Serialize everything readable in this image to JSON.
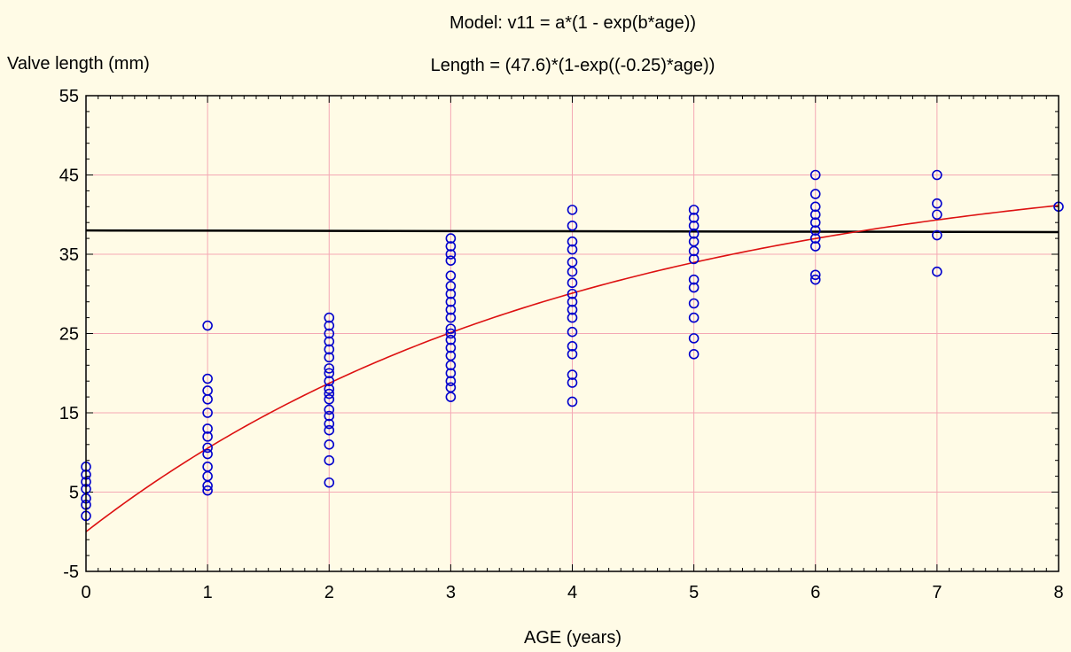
{
  "chart_data": {
    "type": "scatter",
    "title": "Model: v11 = a*(1 - exp(b*age))",
    "subtitle": "Length = (47.6)*(1-exp((-0.25)*age))",
    "xlabel": "AGE (years)",
    "ylabel": "Valve length (mm)",
    "xlim": [
      0,
      8
    ],
    "ylim": [
      -5,
      55
    ],
    "xticks": [
      "0",
      "1",
      "2",
      "3",
      "4",
      "5",
      "6",
      "7",
      "8"
    ],
    "yticks": [
      "-5",
      "5",
      "15",
      "25",
      "35",
      "45",
      "55"
    ],
    "grid": true,
    "colors": {
      "background": "#fffbe6",
      "grid": "#f4a8b4",
      "points": "#0000cc",
      "fit_curve": "#dd1111",
      "mean_line": "#000000"
    },
    "fit_curve": {
      "a": 47.6,
      "b": -0.25
    },
    "mean_line": [
      [
        0,
        38.0
      ],
      [
        8,
        37.8
      ]
    ],
    "points": [
      [
        0,
        8.2
      ],
      [
        0,
        7.2
      ],
      [
        0,
        6.3
      ],
      [
        0,
        5.4
      ],
      [
        0,
        4.2
      ],
      [
        0,
        3.4
      ],
      [
        0,
        2.0
      ],
      [
        1,
        26.0
      ],
      [
        1,
        19.3
      ],
      [
        1,
        17.8
      ],
      [
        1,
        16.7
      ],
      [
        1,
        15.0
      ],
      [
        1,
        13.0
      ],
      [
        1,
        12.0
      ],
      [
        1,
        10.6
      ],
      [
        1,
        9.8
      ],
      [
        1,
        8.2
      ],
      [
        1,
        7.0
      ],
      [
        1,
        5.8
      ],
      [
        1,
        5.2
      ],
      [
        2,
        27.0
      ],
      [
        2,
        26.0
      ],
      [
        2,
        25.0
      ],
      [
        2,
        24.0
      ],
      [
        2,
        23.0
      ],
      [
        2,
        22.0
      ],
      [
        2,
        20.6
      ],
      [
        2,
        20.0
      ],
      [
        2,
        19.0
      ],
      [
        2,
        18.0
      ],
      [
        2,
        17.4
      ],
      [
        2,
        16.7
      ],
      [
        2,
        15.4
      ],
      [
        2,
        14.6
      ],
      [
        2,
        13.6
      ],
      [
        2,
        12.8
      ],
      [
        2,
        11.0
      ],
      [
        2,
        9.0
      ],
      [
        2,
        6.2
      ],
      [
        3,
        37.0
      ],
      [
        3,
        36.0
      ],
      [
        3,
        35.0
      ],
      [
        3,
        34.2
      ],
      [
        3,
        32.3
      ],
      [
        3,
        31.0
      ],
      [
        3,
        30.0
      ],
      [
        3,
        29.0
      ],
      [
        3,
        28.0
      ],
      [
        3,
        27.0
      ],
      [
        3,
        25.6
      ],
      [
        3,
        25.0
      ],
      [
        3,
        24.2
      ],
      [
        3,
        23.2
      ],
      [
        3,
        22.2
      ],
      [
        3,
        21.0
      ],
      [
        3,
        20.0
      ],
      [
        3,
        19.0
      ],
      [
        3,
        18.2
      ],
      [
        3,
        17.0
      ],
      [
        4,
        40.6
      ],
      [
        4,
        38.6
      ],
      [
        4,
        36.6
      ],
      [
        4,
        35.6
      ],
      [
        4,
        34.0
      ],
      [
        4,
        32.8
      ],
      [
        4,
        31.4
      ],
      [
        4,
        30.0
      ],
      [
        4,
        29.0
      ],
      [
        4,
        28.0
      ],
      [
        4,
        27.0
      ],
      [
        4,
        25.2
      ],
      [
        4,
        23.4
      ],
      [
        4,
        22.4
      ],
      [
        4,
        19.8
      ],
      [
        4,
        18.8
      ],
      [
        4,
        16.4
      ],
      [
        5,
        40.6
      ],
      [
        5,
        39.6
      ],
      [
        5,
        38.6
      ],
      [
        5,
        37.6
      ],
      [
        5,
        36.6
      ],
      [
        5,
        35.4
      ],
      [
        5,
        34.4
      ],
      [
        5,
        31.8
      ],
      [
        5,
        30.8
      ],
      [
        5,
        28.8
      ],
      [
        5,
        27.0
      ],
      [
        5,
        24.4
      ],
      [
        5,
        22.4
      ],
      [
        6,
        45.0
      ],
      [
        6,
        42.6
      ],
      [
        6,
        41.0
      ],
      [
        6,
        40.0
      ],
      [
        6,
        39.0
      ],
      [
        6,
        38.0
      ],
      [
        6,
        37.0
      ],
      [
        6,
        36.0
      ],
      [
        6,
        32.4
      ],
      [
        6,
        31.8
      ],
      [
        7,
        45.0
      ],
      [
        7,
        41.4
      ],
      [
        7,
        40.0
      ],
      [
        7,
        37.4
      ],
      [
        7,
        32.8
      ],
      [
        8,
        41.0
      ]
    ]
  }
}
